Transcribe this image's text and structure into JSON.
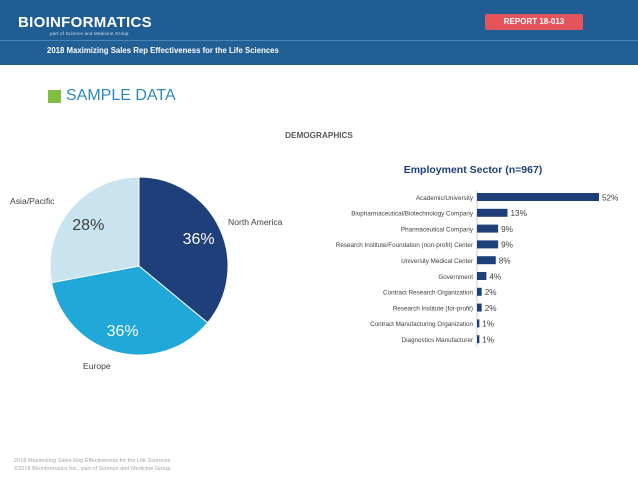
{
  "header": {
    "logo_text": "BIOINFORMATICS",
    "logo_sub": "part of Science and Medicine Group",
    "report_badge": "REPORT 18-013",
    "subtitle": "2018 Maximizing Sales Rep Effectiveness for the Life Sciences",
    "bg_color": "#1f5d93",
    "badge_color": "#e3555a"
  },
  "section": {
    "title": "SAMPLE DATA",
    "accent_color": "#7fbf3f"
  },
  "demographics_title": "DEMOGRAPHICS",
  "chart_data": [
    {
      "type": "pie",
      "labels": [
        "North America",
        "Europe",
        "Asia/Pacific"
      ],
      "values": [
        36,
        36,
        28
      ],
      "value_labels": [
        "36%",
        "36%",
        "28%"
      ],
      "colors": [
        "#1f3f7a",
        "#1fa8d8",
        "#c9e4ef"
      ],
      "label_colors": [
        "#ffffff",
        "#ffffff",
        "#404040"
      ]
    },
    {
      "type": "bar",
      "orientation": "horizontal",
      "title": "Employment Sector (n=967)",
      "categories": [
        "Academic/University",
        "Biopharmaceutical/Biotechnology Company",
        "Pharmaceutical Company",
        "Research Institute/Foundation (non-profit) Center",
        "University Medical Center",
        "Government",
        "Contract Research Organization",
        "Research Institute (for-profit)",
        "Contract Manufacturing Organization",
        "Diagnostics Manufacturer"
      ],
      "values": [
        52,
        13,
        9,
        9,
        8,
        4,
        2,
        2,
        1,
        1
      ],
      "value_labels": [
        "52%",
        "13%",
        "9%",
        "9%",
        "8%",
        "4%",
        "2%",
        "2%",
        "1%",
        "1%"
      ],
      "color": "#1f3f7a",
      "xlim": [
        0,
        52
      ]
    }
  ],
  "footer": {
    "line1": "2018 Maximizing Sales Rep Effectiveness for the Life Sciences",
    "line2": "©2018 BioInformatics Inc., part of Science and Medicine Group"
  }
}
